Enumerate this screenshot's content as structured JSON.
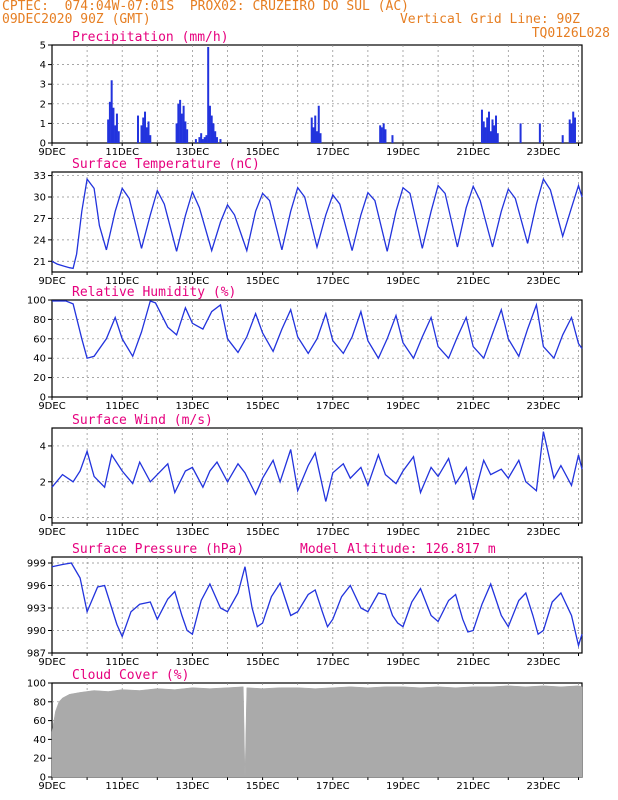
{
  "header": {
    "line1": "CPTEC:  074:04W-07:01S  PROX02: CRUZEIRO DO SUL (AC)",
    "line2_left": "09DEC2020 90Z (GMT)",
    "line2_right": "Vertical Grid Line: 90Z",
    "line3_right": "TQ0126L028"
  },
  "colors": {
    "header": "#e67e22",
    "title": "#e6007e",
    "line": "#2233dd",
    "cloud": "#aaaaaa",
    "grid": "#888888"
  },
  "x_axis": {
    "start_label": "9DEC",
    "labels": [
      "9DEC",
      "11DEC",
      "13DEC",
      "15DEC",
      "17DEC",
      "19DEC",
      "21DEC",
      "23DEC"
    ],
    "day_range": [
      9,
      24.1
    ]
  },
  "chart_data": [
    {
      "type": "bar",
      "title": "Precipitation (mm/h)",
      "ylim": [
        0,
        5
      ],
      "yticks": [
        "0",
        "1",
        "2",
        "3",
        "4",
        "5"
      ],
      "x": [
        10.6,
        10.65,
        10.7,
        10.75,
        10.8,
        10.85,
        10.9,
        11.45,
        11.55,
        11.6,
        11.65,
        11.7,
        11.75,
        11.8,
        12.55,
        12.6,
        12.65,
        12.7,
        12.75,
        12.8,
        12.85,
        13.1,
        13.2,
        13.25,
        13.3,
        13.35,
        13.4,
        13.45,
        13.5,
        13.55,
        13.6,
        13.65,
        13.7,
        13.8,
        16.4,
        16.45,
        16.5,
        16.55,
        16.6,
        16.65,
        18.35,
        18.4,
        18.45,
        18.5,
        18.7,
        21.25,
        21.3,
        21.35,
        21.4,
        21.45,
        21.5,
        21.55,
        21.6,
        21.65,
        21.7,
        22.35,
        22.9,
        23.55,
        23.75,
        23.8,
        23.85,
        23.9
      ],
      "values": [
        1.2,
        2.1,
        3.2,
        1.8,
        0.9,
        1.5,
        0.6,
        1.4,
        0.9,
        1.3,
        1.6,
        0.8,
        1.1,
        0.4,
        1.0,
        2.0,
        2.2,
        1.5,
        1.9,
        1.1,
        0.7,
        0.2,
        0.3,
        0.5,
        0.2,
        0.3,
        0.4,
        4.9,
        1.9,
        1.4,
        1.0,
        0.6,
        0.3,
        0.2,
        1.3,
        0.8,
        1.4,
        0.6,
        1.9,
        0.5,
        0.9,
        0.8,
        1.0,
        0.7,
        0.4,
        1.7,
        1.1,
        0.8,
        1.3,
        1.6,
        0.6,
        1.2,
        0.9,
        1.4,
        0.5,
        1.0,
        1.0,
        0.4,
        1.2,
        1.0,
        1.6,
        1.3
      ]
    },
    {
      "type": "line",
      "title": "Surface Temperature (nC)",
      "ylim": [
        19.5,
        33.5
      ],
      "yticks": [
        "21",
        "24",
        "27",
        "30",
        "33"
      ],
      "x": [
        9.0,
        9.15,
        9.35,
        9.5,
        9.6,
        9.7,
        9.85,
        10.0,
        10.2,
        10.35,
        10.55,
        10.8,
        11.0,
        11.2,
        11.55,
        11.8,
        12.0,
        12.2,
        12.55,
        12.8,
        13.0,
        13.2,
        13.55,
        13.8,
        14.0,
        14.2,
        14.55,
        14.8,
        15.0,
        15.2,
        15.55,
        15.8,
        16.0,
        16.2,
        16.55,
        16.8,
        17.0,
        17.2,
        17.55,
        17.8,
        18.0,
        18.2,
        18.55,
        18.8,
        19.0,
        19.2,
        19.55,
        19.8,
        20.0,
        20.2,
        20.55,
        20.8,
        21.0,
        21.2,
        21.55,
        21.8,
        22.0,
        22.2,
        22.55,
        22.8,
        23.0,
        23.2,
        23.55,
        23.8,
        24.0,
        24.1
      ],
      "values": [
        21.0,
        20.6,
        20.3,
        20.1,
        20.0,
        22.0,
        28.0,
        32.5,
        31.2,
        26.0,
        22.6,
        28.0,
        31.2,
        29.8,
        22.8,
        27.5,
        30.9,
        29.0,
        22.4,
        27.4,
        30.7,
        28.5,
        22.5,
        26.5,
        28.9,
        27.5,
        22.5,
        28.0,
        30.5,
        29.5,
        22.6,
        28.0,
        31.3,
        30.0,
        23.0,
        27.5,
        30.3,
        29.0,
        22.5,
        27.5,
        30.6,
        29.5,
        22.4,
        28.0,
        31.3,
        30.5,
        22.8,
        28.0,
        31.6,
        30.5,
        23.0,
        28.5,
        31.5,
        29.5,
        23.0,
        28.0,
        31.1,
        29.8,
        23.5,
        29.0,
        32.5,
        31.0,
        24.5,
        28.5,
        31.6,
        30.0
      ]
    },
    {
      "type": "line",
      "title": "Relative Humidity (%)",
      "ylim": [
        0,
        100
      ],
      "yticks": [
        "0",
        "20",
        "40",
        "60",
        "80",
        "100"
      ],
      "x": [
        9.0,
        9.4,
        9.6,
        9.85,
        10.0,
        10.2,
        10.55,
        10.8,
        11.0,
        11.3,
        11.55,
        11.8,
        11.95,
        12.3,
        12.55,
        12.8,
        13.0,
        13.3,
        13.55,
        13.8,
        14.0,
        14.3,
        14.55,
        14.8,
        15.0,
        15.3,
        15.55,
        15.8,
        16.0,
        16.3,
        16.55,
        16.8,
        17.0,
        17.3,
        17.55,
        17.8,
        18.0,
        18.3,
        18.55,
        18.8,
        19.0,
        19.3,
        19.55,
        19.8,
        20.0,
        20.3,
        20.55,
        20.8,
        21.0,
        21.3,
        21.55,
        21.8,
        22.0,
        22.3,
        22.55,
        22.8,
        23.0,
        23.3,
        23.55,
        23.8,
        24.0,
        24.1
      ],
      "values": [
        99,
        99,
        96,
        60,
        40,
        42,
        60,
        82,
        60,
        42,
        67,
        99,
        97,
        72,
        64,
        92,
        76,
        70,
        88,
        95,
        60,
        46,
        62,
        86,
        66,
        47,
        70,
        90,
        62,
        45,
        60,
        86,
        58,
        45,
        62,
        88,
        58,
        40,
        60,
        84,
        56,
        40,
        62,
        82,
        52,
        40,
        62,
        82,
        52,
        40,
        65,
        90,
        60,
        42,
        70,
        95,
        52,
        40,
        64,
        82,
        55,
        50
      ]
    },
    {
      "type": "line",
      "title": "Surface Wind (m/s)",
      "ylim": [
        -0.3,
        5.0
      ],
      "yticks": [
        "0",
        "2",
        "4"
      ],
      "x": [
        9.0,
        9.3,
        9.6,
        9.8,
        10.0,
        10.2,
        10.5,
        10.7,
        11.0,
        11.3,
        11.5,
        11.8,
        12.0,
        12.3,
        12.5,
        12.8,
        13.0,
        13.3,
        13.5,
        13.7,
        14.0,
        14.3,
        14.5,
        14.8,
        15.0,
        15.3,
        15.5,
        15.8,
        16.0,
        16.3,
        16.5,
        16.8,
        17.0,
        17.3,
        17.5,
        17.8,
        18.0,
        18.3,
        18.5,
        18.8,
        19.0,
        19.3,
        19.5,
        19.8,
        20.0,
        20.3,
        20.5,
        20.8,
        21.0,
        21.3,
        21.5,
        21.8,
        22.0,
        22.3,
        22.5,
        22.8,
        23.0,
        23.3,
        23.5,
        23.8,
        24.0,
        24.1
      ],
      "values": [
        1.7,
        2.4,
        2.0,
        2.6,
        3.7,
        2.3,
        1.7,
        3.5,
        2.6,
        1.9,
        3.1,
        2.0,
        2.4,
        3.0,
        1.4,
        2.6,
        2.8,
        1.7,
        2.6,
        3.1,
        2.0,
        3.0,
        2.5,
        1.3,
        2.2,
        3.2,
        2.0,
        3.8,
        1.5,
        2.9,
        3.6,
        0.9,
        2.5,
        3.0,
        2.2,
        2.8,
        1.8,
        3.5,
        2.4,
        1.9,
        2.6,
        3.4,
        1.4,
        2.8,
        2.3,
        3.3,
        1.9,
        2.8,
        1.0,
        3.2,
        2.4,
        2.7,
        2.2,
        3.2,
        2.0,
        1.5,
        4.8,
        2.2,
        2.9,
        1.8,
        3.5,
        2.7
      ]
    },
    {
      "type": "line",
      "title": "Surface Pressure (hPa)",
      "annotation": "Model Altitude: 126.817  m",
      "ylim": [
        987,
        999.8
      ],
      "yticks": [
        "987",
        "990",
        "993",
        "996",
        "999"
      ],
      "x": [
        9.0,
        9.3,
        9.55,
        9.8,
        10.0,
        10.3,
        10.5,
        10.7,
        10.85,
        11.0,
        11.25,
        11.5,
        11.8,
        12.0,
        12.3,
        12.5,
        12.7,
        12.85,
        13.0,
        13.25,
        13.5,
        13.8,
        14.0,
        14.3,
        14.5,
        14.7,
        14.85,
        15.0,
        15.25,
        15.5,
        15.8,
        16.0,
        16.3,
        16.5,
        16.7,
        16.85,
        17.0,
        17.25,
        17.5,
        17.8,
        18.0,
        18.3,
        18.5,
        18.7,
        18.85,
        19.0,
        19.25,
        19.5,
        19.8,
        20.0,
        20.3,
        20.5,
        20.7,
        20.85,
        21.0,
        21.25,
        21.5,
        21.8,
        22.0,
        22.3,
        22.5,
        22.7,
        22.85,
        23.0,
        23.25,
        23.5,
        23.8,
        24.0,
        24.1
      ],
      "values": [
        998.5,
        998.8,
        999.0,
        997.0,
        992.5,
        995.8,
        996.0,
        993.0,
        990.8,
        989.2,
        992.5,
        993.5,
        993.8,
        991.5,
        994.2,
        995.2,
        992.0,
        990.0,
        989.5,
        994.0,
        996.2,
        993.0,
        992.5,
        995.0,
        998.5,
        993.0,
        990.5,
        991.0,
        994.5,
        996.3,
        992.0,
        992.5,
        994.8,
        995.4,
        992.5,
        990.5,
        991.5,
        994.5,
        996.0,
        993.0,
        992.5,
        995.0,
        994.8,
        992.0,
        991.0,
        990.5,
        993.8,
        995.6,
        992.0,
        991.2,
        994.0,
        994.8,
        991.5,
        989.8,
        990.0,
        993.5,
        996.2,
        992.0,
        990.5,
        994.0,
        995.0,
        992.0,
        989.5,
        990.0,
        993.8,
        995.0,
        992.0,
        988.0,
        989.5
      ]
    },
    {
      "type": "area",
      "title": "Cloud Cover (%)",
      "ylim": [
        0,
        100
      ],
      "yticks": [
        "0",
        "20",
        "40",
        "60",
        "80",
        "100"
      ],
      "x": [
        9.0,
        9.1,
        9.2,
        9.3,
        9.5,
        9.8,
        10.2,
        10.6,
        11.0,
        11.5,
        12.0,
        12.5,
        13.0,
        13.5,
        14.0,
        14.45,
        14.5,
        14.55,
        15.0,
        15.5,
        16.0,
        16.5,
        17.0,
        17.5,
        18.0,
        18.5,
        19.0,
        19.5,
        20.0,
        20.5,
        21.0,
        21.5,
        22.0,
        22.5,
        23.0,
        23.5,
        24.0,
        24.1
      ],
      "values": [
        48,
        70,
        80,
        84,
        88,
        90,
        92,
        91,
        93,
        92,
        94,
        93,
        95,
        94,
        95,
        96,
        0,
        95,
        94,
        95,
        95,
        94,
        95,
        96,
        95,
        96,
        96,
        95,
        96,
        95,
        96,
        96,
        97,
        96,
        97,
        96,
        97,
        96
      ]
    }
  ]
}
